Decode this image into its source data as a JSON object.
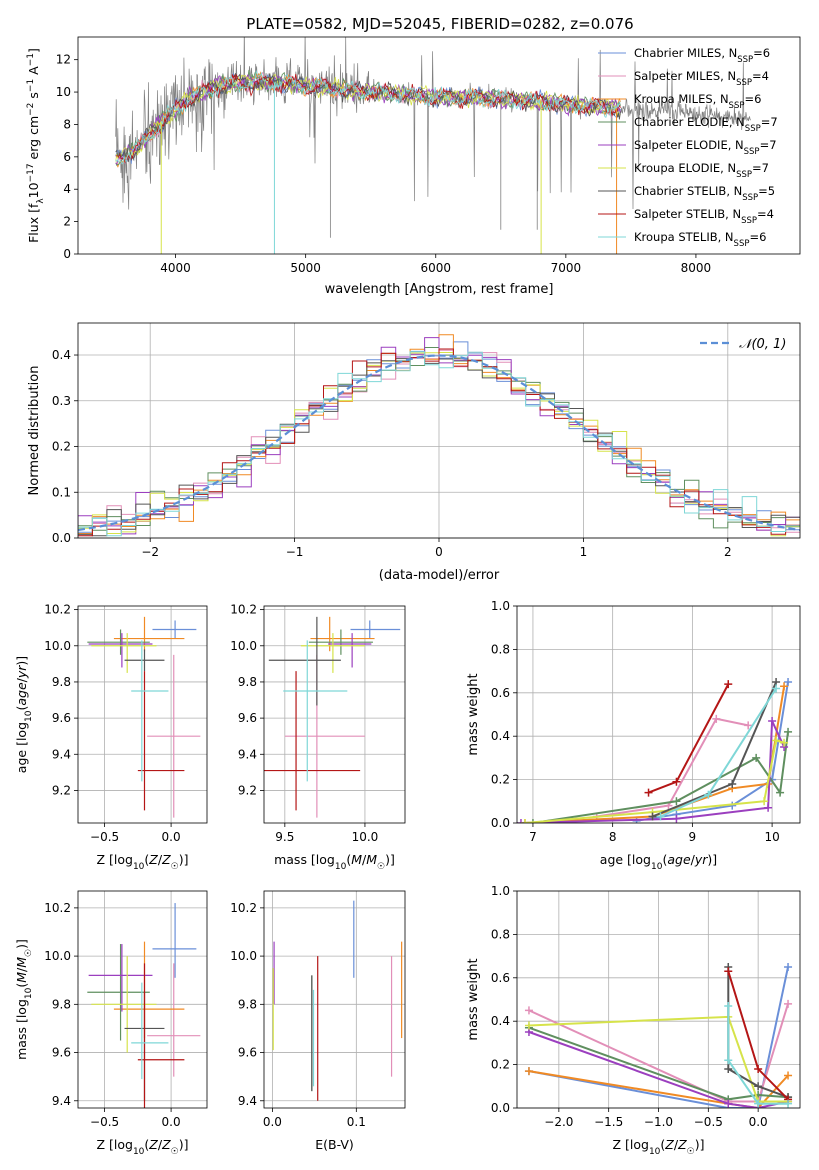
{
  "figure": {
    "title": "PLATE=0582, MJD=52045, FIBERID=0282, z=0.076",
    "colors": {
      "c1": "#6a8fd8",
      "c2": "#e28fb8",
      "c3": "#f08a24",
      "c4": "#5f8f5f",
      "c5": "#9b3fbf",
      "c6": "#d6e34a",
      "c7": "#555555",
      "c8": "#b41616",
      "c9": "#7fd7d7",
      "data": "#808080",
      "normal": "#5b8fd6"
    }
  },
  "chart_data": [
    {
      "id": "spectrum",
      "type": "line",
      "xlabel": "wavelength [Angstrom, rest frame]",
      "ylabel": "Flux [f",
      "ylabel_parts": [
        "Flux [f",
        "λ",
        "10",
        "−17",
        " erg cm",
        "−2",
        " s",
        "−1",
        " A",
        "−1",
        "]"
      ],
      "xlim": [
        3250,
        8800
      ],
      "ylim": [
        0,
        13.4
      ],
      "xticks": [
        4000,
        5000,
        6000,
        7000,
        8000
      ],
      "yticks": [
        0,
        2,
        4,
        6,
        8,
        10,
        12
      ],
      "grid": false,
      "legend_position": "top-right",
      "legend": [
        {
          "label": "Chabrier MILES, N",
          "sub": "SSP",
          "rest": "=6",
          "color_key": "c1"
        },
        {
          "label": "Salpeter MILES, N",
          "sub": "SSP",
          "rest": "=4",
          "color_key": "c2"
        },
        {
          "label": "Kroupa MILES, N",
          "sub": "SSP",
          "rest": "=6",
          "color_key": "c3"
        },
        {
          "label": "Chabrier ELODIE, N",
          "sub": "SSP",
          "rest": "=7",
          "color_key": "c4"
        },
        {
          "label": "Salpeter ELODIE, N",
          "sub": "SSP",
          "rest": "=7",
          "color_key": "c5"
        },
        {
          "label": "Kroupa ELODIE, N",
          "sub": "SSP",
          "rest": "=7",
          "color_key": "c6"
        },
        {
          "label": "Chabrier STELIB, N",
          "sub": "SSP",
          "rest": "=5",
          "color_key": "c7"
        },
        {
          "label": "Salpeter STELIB, N",
          "sub": "SSP",
          "rest": "=4",
          "color_key": "c8"
        },
        {
          "label": "Kroupa STELIB, N",
          "sub": "SSP",
          "rest": "=6",
          "color_key": "c9"
        }
      ],
      "continuum": [
        [
          3540,
          5.8
        ],
        [
          3700,
          6.5
        ],
        [
          3900,
          8.2
        ],
        [
          4100,
          9.6
        ],
        [
          4300,
          10.3
        ],
        [
          4500,
          10.6
        ],
        [
          4800,
          10.6
        ],
        [
          5100,
          10.3
        ],
        [
          5500,
          10.0
        ],
        [
          6000,
          9.7
        ],
        [
          6500,
          9.6
        ],
        [
          6800,
          9.4
        ],
        [
          7200,
          9.1
        ],
        [
          7400,
          9.0
        ],
        [
          7700,
          8.8
        ],
        [
          8100,
          8.6
        ],
        [
          8400,
          8.4
        ]
      ],
      "data_range": [
        3540,
        8420
      ],
      "model_range": [
        3540,
        7420
      ]
    },
    {
      "id": "residuals",
      "type": "histogram",
      "xlabel": "(data-model)/error",
      "ylabel": "Normed distribution",
      "xlim": [
        -2.5,
        2.5
      ],
      "ylim": [
        0,
        0.47
      ],
      "xticks": [
        -2,
        -1,
        0,
        1,
        2
      ],
      "yticks": [
        0.0,
        0.1,
        0.2,
        0.3,
        0.4
      ],
      "grid": true,
      "bin_width": 0.1,
      "legend_position": "top-right",
      "normal_label": "𝒩(0, 1)",
      "normal_mu": 0,
      "normal_sigma": 1
    },
    {
      "id": "age-vs-Z",
      "type": "scatter",
      "xlabel": "Z [log10(Z/Z☉)]",
      "ylabel": "age  [log10(age/yr)]",
      "xlim": [
        -0.7,
        0.27
      ],
      "ylim": [
        9.02,
        10.22
      ],
      "xticks": [
        -0.5,
        0.0
      ],
      "yticks": [
        9.2,
        9.4,
        9.6,
        9.8,
        10.0,
        10.2
      ],
      "grid": true,
      "points": [
        {
          "color_key": "c1",
          "x": 0.03,
          "y": 10.09,
          "xerr": [
            0.17,
            0.16
          ],
          "yerr": [
            0.05,
            0.05
          ]
        },
        {
          "color_key": "c2",
          "x": 0.02,
          "y": 9.5,
          "xerr": [
            0.2,
            0.2
          ],
          "yerr": [
            0.45,
            0.45
          ]
        },
        {
          "color_key": "c3",
          "x": -0.2,
          "y": 10.04,
          "xerr": [
            0.23,
            0.3
          ],
          "yerr": [
            0.07,
            0.12
          ]
        },
        {
          "color_key": "c4",
          "x": -0.38,
          "y": 10.02,
          "xerr": [
            0.25,
            0.22
          ],
          "yerr": [
            0.07,
            0.07
          ]
        },
        {
          "color_key": "c5",
          "x": -0.37,
          "y": 10.01,
          "xerr": [
            0.25,
            0.23
          ],
          "yerr": [
            0.13,
            0.06
          ]
        },
        {
          "color_key": "c6",
          "x": -0.33,
          "y": 10.0,
          "xerr": [
            0.27,
            0.22
          ],
          "yerr": [
            0.15,
            0.07
          ]
        },
        {
          "color_key": "c7",
          "x": -0.2,
          "y": 9.92,
          "xerr": [
            0.15,
            0.15
          ],
          "yerr": [
            0.06,
            0.06
          ]
        },
        {
          "color_key": "c8",
          "x": -0.2,
          "y": 9.31,
          "xerr": [
            0.05,
            0.3
          ],
          "yerr": [
            0.22,
            0.55
          ]
        },
        {
          "color_key": "c9",
          "x": -0.22,
          "y": 9.75,
          "xerr": [
            0.08,
            0.2
          ],
          "yerr": [
            0.5,
            0.28
          ]
        }
      ]
    },
    {
      "id": "age-vs-mass",
      "type": "scatter",
      "xlabel": "mass [log10(M/M☉)]",
      "ylabel": "",
      "xlim": [
        9.37,
        10.25
      ],
      "ylim": [
        9.02,
        10.22
      ],
      "xticks": [
        9.5,
        10.0
      ],
      "yticks": [
        9.2,
        9.4,
        9.6,
        9.8,
        10.0,
        10.2
      ],
      "grid": true,
      "points": [
        {
          "color_key": "c1",
          "x": 10.03,
          "y": 10.09,
          "xerr": [
            0.12,
            0.19
          ],
          "yerr": [
            0.05,
            0.05
          ]
        },
        {
          "color_key": "c2",
          "x": 9.7,
          "y": 9.5,
          "xerr": [
            0.2,
            0.3
          ],
          "yerr": [
            0.45,
            0.45
          ]
        },
        {
          "color_key": "c3",
          "x": 9.78,
          "y": 10.04,
          "xerr": [
            0.12,
            0.28
          ],
          "yerr": [
            0.07,
            0.12
          ]
        },
        {
          "color_key": "c4",
          "x": 9.85,
          "y": 10.02,
          "xerr": [
            0.2,
            0.2
          ],
          "yerr": [
            0.07,
            0.07
          ]
        },
        {
          "color_key": "c5",
          "x": 9.92,
          "y": 10.01,
          "xerr": [
            0.15,
            0.12
          ],
          "yerr": [
            0.13,
            0.06
          ]
        },
        {
          "color_key": "c6",
          "x": 9.8,
          "y": 10.0,
          "xerr": [
            0.2,
            0.2
          ],
          "yerr": [
            0.15,
            0.07
          ]
        },
        {
          "color_key": "c7",
          "x": 9.7,
          "y": 9.92,
          "xerr": [
            0.3,
            0.15
          ],
          "yerr": [
            0.25,
            0.24
          ]
        },
        {
          "color_key": "c8",
          "x": 9.57,
          "y": 9.31,
          "xerr": [
            0.2,
            0.4
          ],
          "yerr": [
            0.22,
            0.55
          ]
        },
        {
          "color_key": "c9",
          "x": 9.64,
          "y": 9.75,
          "xerr": [
            0.15,
            0.25
          ],
          "yerr": [
            0.5,
            0.28
          ]
        }
      ]
    },
    {
      "id": "weight-vs-age",
      "type": "line",
      "xlabel": "age  [log10(age/yr)]",
      "ylabel": "mass weight",
      "xlim": [
        6.8,
        10.35
      ],
      "ylim": [
        0,
        1.0
      ],
      "xticks": [
        7,
        8,
        9,
        10
      ],
      "yticks": [
        0.0,
        0.2,
        0.4,
        0.6,
        0.8,
        1.0
      ],
      "grid": true,
      "series": [
        {
          "color_key": "c1",
          "x": [
            8.3,
            8.8,
            9.5,
            10.0,
            10.2
          ],
          "y": [
            0.01,
            0.04,
            0.08,
            0.2,
            0.65
          ]
        },
        {
          "color_key": "c2",
          "x": [
            7.8,
            8.7,
            9.3,
            9.7
          ],
          "y": [
            0.03,
            0.08,
            0.48,
            0.45
          ]
        },
        {
          "color_key": "c3",
          "x": [
            6.9,
            8.5,
            9.5,
            9.95,
            10.15
          ],
          "y": [
            0.0,
            0.03,
            0.16,
            0.18,
            0.63
          ]
        },
        {
          "color_key": "c4",
          "x": [
            7.0,
            8.8,
            9.8,
            10.1,
            10.2
          ],
          "y": [
            0.0,
            0.1,
            0.3,
            0.14,
            0.42
          ]
        },
        {
          "color_key": "c5",
          "x": [
            6.85,
            8.8,
            9.95,
            10.0,
            10.15
          ],
          "y": [
            0.0,
            0.02,
            0.07,
            0.47,
            0.35
          ]
        },
        {
          "color_key": "c6",
          "x": [
            6.9,
            8.5,
            9.9,
            10.05,
            10.15
          ],
          "y": [
            0.0,
            0.05,
            0.1,
            0.38,
            0.37
          ]
        },
        {
          "color_key": "c7",
          "x": [
            8.5,
            9.5,
            10.05
          ],
          "y": [
            0.03,
            0.18,
            0.65
          ]
        },
        {
          "color_key": "c8",
          "x": [
            8.45,
            8.8,
            9.45
          ],
          "y": [
            0.14,
            0.19,
            0.64
          ]
        },
        {
          "color_key": "c9",
          "x": [
            8.6,
            9.2,
            10.05
          ],
          "y": [
            0.03,
            0.13,
            0.62
          ]
        }
      ]
    },
    {
      "id": "mass-vs-Z",
      "type": "scatter",
      "xlabel": "Z [log10(Z/Z☉)]",
      "ylabel": "mass [log10(M/M☉)]",
      "xlim": [
        -0.7,
        0.27
      ],
      "ylim": [
        9.37,
        10.27
      ],
      "xticks": [
        -0.5,
        0.0
      ],
      "yticks": [
        9.4,
        9.6,
        9.8,
        10.0,
        10.2
      ],
      "grid": true,
      "points": [
        {
          "color_key": "c1",
          "x": 0.03,
          "y": 10.03,
          "xerr": [
            0.17,
            0.16
          ],
          "yerr": [
            0.12,
            0.19
          ]
        },
        {
          "color_key": "c2",
          "x": 0.02,
          "y": 9.67,
          "xerr": [
            0.2,
            0.2
          ],
          "yerr": [
            0.17,
            0.3
          ]
        },
        {
          "color_key": "c3",
          "x": -0.2,
          "y": 9.78,
          "xerr": [
            0.23,
            0.3
          ],
          "yerr": [
            0.12,
            0.28
          ]
        },
        {
          "color_key": "c4",
          "x": -0.38,
          "y": 9.85,
          "xerr": [
            0.25,
            0.22
          ],
          "yerr": [
            0.2,
            0.2
          ]
        },
        {
          "color_key": "c5",
          "x": -0.37,
          "y": 9.92,
          "xerr": [
            0.25,
            0.23
          ],
          "yerr": [
            0.15,
            0.13
          ]
        },
        {
          "color_key": "c6",
          "x": -0.33,
          "y": 9.8,
          "xerr": [
            0.27,
            0.22
          ],
          "yerr": [
            0.2,
            0.2
          ]
        },
        {
          "color_key": "c7",
          "x": -0.2,
          "y": 9.7,
          "xerr": [
            0.15,
            0.15
          ],
          "yerr": [
            0.3,
            0.15
          ]
        },
        {
          "color_key": "c8",
          "x": -0.2,
          "y": 9.57,
          "xerr": [
            0.05,
            0.3
          ],
          "yerr": [
            0.2,
            0.4
          ]
        },
        {
          "color_key": "c9",
          "x": -0.22,
          "y": 9.64,
          "xerr": [
            0.08,
            0.2
          ],
          "yerr": [
            0.15,
            0.25
          ]
        }
      ]
    },
    {
      "id": "mass-vs-ebv",
      "type": "scatter",
      "xlabel": "E(B-V)",
      "ylabel": "",
      "xlim": [
        -0.01,
        0.158
      ],
      "ylim": [
        9.37,
        10.27
      ],
      "xticks": [
        0.0,
        0.1
      ],
      "xticklabels": [
        "0.0",
        "0.1"
      ],
      "yticks": [
        9.4,
        9.6,
        9.8,
        10.0,
        10.2
      ],
      "grid": true,
      "points": [
        {
          "color_key": "c1",
          "x": 0.097,
          "y": 10.07,
          "yerr": [
            0.16,
            0.16
          ]
        },
        {
          "color_key": "c2",
          "x": 0.142,
          "y": 9.75,
          "yerr": [
            0.25,
            0.25
          ]
        },
        {
          "color_key": "c3",
          "x": 0.154,
          "y": 9.86,
          "yerr": [
            0.2,
            0.2
          ]
        },
        {
          "color_key": "c4",
          "x": 0.047,
          "y": 9.68,
          "yerr": [
            0.24,
            0.24
          ]
        },
        {
          "color_key": "c5",
          "x": 0.002,
          "y": 9.93,
          "yerr": [
            0.13,
            0.13
          ]
        },
        {
          "color_key": "c6",
          "x": 0.001,
          "y": 9.78,
          "yerr": [
            0.17,
            0.17
          ]
        },
        {
          "color_key": "c7",
          "x": 0.047,
          "y": 9.68,
          "yerr": [
            0.24,
            0.24
          ]
        },
        {
          "color_key": "c8",
          "x": 0.054,
          "y": 9.7,
          "yerr": [
            0.3,
            0.3
          ]
        },
        {
          "color_key": "c9",
          "x": 0.049,
          "y": 9.66,
          "yerr": [
            0.2,
            0.2
          ]
        }
      ]
    },
    {
      "id": "weight-vs-Z",
      "type": "line",
      "xlabel": "Z [log10(Z/Z☉)]",
      "ylabel": "mass weight",
      "xlim": [
        -2.42,
        0.42
      ],
      "ylim": [
        0,
        1.0
      ],
      "xticks": [
        -2.0,
        -1.5,
        -1.0,
        -0.5,
        0.0
      ],
      "xticklabels": [
        "−2.0",
        "−1.5",
        "−1.0",
        "−0.5",
        "0.0"
      ],
      "yticks": [
        0.0,
        0.2,
        0.4,
        0.6,
        0.8,
        1.0
      ],
      "grid": true,
      "series": [
        {
          "color_key": "c1",
          "x": [
            -2.3,
            -0.3,
            0.0,
            0.3
          ],
          "y": [
            0.17,
            0.0,
            0.0,
            0.65
          ]
        },
        {
          "color_key": "c2",
          "x": [
            -2.3,
            -0.3,
            0.0,
            0.3
          ],
          "y": [
            0.45,
            0.03,
            0.03,
            0.48
          ]
        },
        {
          "color_key": "c3",
          "x": [
            -2.3,
            -0.3,
            0.0,
            0.3
          ],
          "y": [
            0.17,
            0.02,
            0.0,
            0.15
          ]
        },
        {
          "color_key": "c4",
          "x": [
            -2.3,
            -0.3,
            0.0,
            0.3
          ],
          "y": [
            0.37,
            0.04,
            0.06,
            0.05
          ]
        },
        {
          "color_key": "c5",
          "x": [
            -2.3,
            -0.3,
            0.0,
            0.3
          ],
          "y": [
            0.35,
            0.02,
            0.0,
            0.03
          ]
        },
        {
          "color_key": "c6",
          "x": [
            -2.3,
            -0.3,
            0.0,
            0.3
          ],
          "y": [
            0.38,
            0.42,
            0.03,
            0.03
          ]
        },
        {
          "color_key": "c7",
          "x": [
            -0.3,
            -0.3,
            0.0,
            0.3
          ],
          "y": [
            0.65,
            0.18,
            0.1,
            0.05
          ]
        },
        {
          "color_key": "c8",
          "x": [
            -0.3,
            0.0,
            0.3
          ],
          "y": [
            0.63,
            0.18,
            0.04
          ]
        },
        {
          "color_key": "c9",
          "x": [
            -0.3,
            -0.3,
            0.0,
            0.3
          ],
          "y": [
            0.47,
            0.22,
            0.02,
            0.02
          ]
        }
      ]
    }
  ]
}
